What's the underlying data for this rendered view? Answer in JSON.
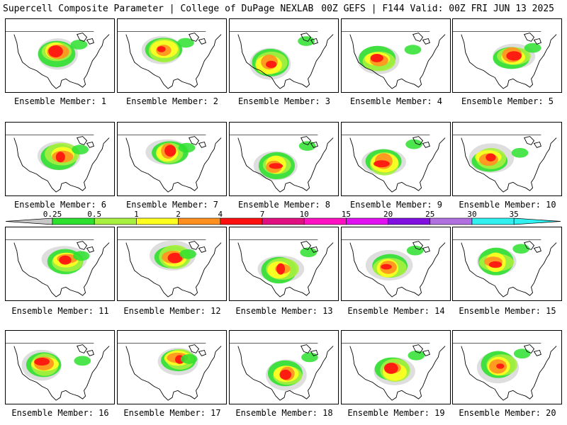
{
  "title_left": "Supercell Composite Parameter | College of DuPage NEXLAB",
  "title_right": "00Z GEFS | F144 Valid: 00Z FRI JUN 13 2025",
  "panels": [
    {
      "label": "Ensemble Member: 1"
    },
    {
      "label": "Ensemble Member: 2"
    },
    {
      "label": "Ensemble Member: 3"
    },
    {
      "label": "Ensemble Member: 4"
    },
    {
      "label": "Ensemble Member: 5"
    },
    {
      "label": "Ensemble Member: 6"
    },
    {
      "label": "Ensemble Member: 7"
    },
    {
      "label": "Ensemble Member: 8"
    },
    {
      "label": "Ensemble Member: 9"
    },
    {
      "label": "Ensemble Member: 10"
    },
    {
      "label": "Ensemble Member: 11"
    },
    {
      "label": "Ensemble Member: 12"
    },
    {
      "label": "Ensemble Member: 13"
    },
    {
      "label": "Ensemble Member: 14"
    },
    {
      "label": "Ensemble Member: 15"
    },
    {
      "label": "Ensemble Member: 16"
    },
    {
      "label": "Ensemble Member: 17"
    },
    {
      "label": "Ensemble Member: 18"
    },
    {
      "label": "Ensemble Member: 19"
    },
    {
      "label": "Ensemble Member: 20"
    }
  ],
  "colorbar": {
    "ticks": [
      "0.25",
      "0.5",
      "1",
      "2",
      "4",
      "7",
      "10",
      "15",
      "20",
      "25",
      "30",
      "35"
    ],
    "colors": [
      "#c8c8c8",
      "#2ee02e",
      "#a8f040",
      "#ffff20",
      "#ff9020",
      "#ff1010",
      "#e01080",
      "#ff10c0",
      "#e010f0",
      "#8010e0",
      "#b070e0",
      "#30f0f0"
    ]
  }
}
